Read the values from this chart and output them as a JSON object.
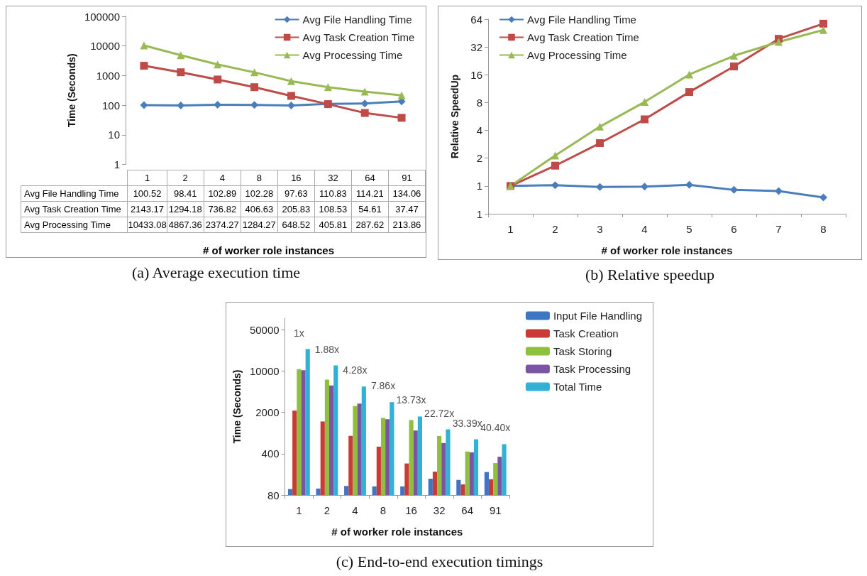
{
  "chart_data": [
    {
      "type": "line",
      "title": "(a) Average execution time",
      "xlabel": "# of worker role instances",
      "ylabel": "Time (Seconds)",
      "categories": [
        "1",
        "2",
        "4",
        "8",
        "16",
        "32",
        "64",
        "91"
      ],
      "series": [
        {
          "name": "Avg File Handling Time",
          "color": "#4a7ebb",
          "marker": "diamond",
          "values": [
            100.52,
            98.41,
            102.89,
            102.28,
            97.63,
            110.83,
            114.21,
            134.06
          ]
        },
        {
          "name": "Avg Task Creation Time",
          "color": "#be4b48",
          "marker": "square",
          "values": [
            2143.17,
            1294.18,
            736.82,
            406.63,
            205.83,
            108.53,
            54.61,
            37.47
          ]
        },
        {
          "name": "Avg Processing Time",
          "color": "#98b954",
          "marker": "triangle",
          "values": [
            10433.08,
            4867.36,
            2374.27,
            1284.27,
            648.52,
            405.81,
            287.62,
            213.86
          ]
        }
      ],
      "log": "y",
      "ylim": [
        1,
        100000
      ],
      "yticks": [
        1,
        10,
        100,
        1000,
        10000,
        100000
      ],
      "legend": "top right",
      "data_labels": true
    },
    {
      "type": "line",
      "title": "(b) Relative speedup",
      "xlabel": "# of worker role instances",
      "ylabel": "Relative SpeedUp",
      "categories": [
        "1",
        "2",
        "3",
        "4",
        "5",
        "6",
        "7",
        "8"
      ],
      "series": [
        {
          "name": "Avg File Handling Time",
          "color": "#4a7ebb",
          "marker": "diamond",
          "values": [
            1,
            1.02,
            0.977,
            0.983,
            1.03,
            0.907,
            0.88,
            0.75
          ]
        },
        {
          "name": "Avg Task Creation Time",
          "color": "#be4b48",
          "marker": "square",
          "values": [
            1,
            1.66,
            2.91,
            5.27,
            10.4,
            19.7,
            39.2,
            57.2
          ]
        },
        {
          "name": "Avg Processing Time",
          "color": "#98b954",
          "marker": "triangle",
          "values": [
            1,
            2.14,
            4.39,
            8.12,
            16.1,
            25.7,
            36.3,
            48.8
          ]
        }
      ],
      "log": "y",
      "ylim": [
        0.5,
        64
      ],
      "yticks": [
        {
          "value": 0.5,
          "label": "1"
        },
        1,
        2,
        4,
        8,
        16,
        32,
        64
      ],
      "legend": "top left"
    },
    {
      "type": "bar",
      "title": "(c) End-to-end execution timings",
      "xlabel": "# of worker role instances",
      "ylabel": "Time (Seconds)",
      "categories": [
        "1",
        "2",
        "4",
        "8",
        "16",
        "32",
        "64",
        "91"
      ],
      "series": [
        {
          "name": "Input File Handling",
          "color": "#3f76c4",
          "values": [
            101,
            103,
            114,
            112,
            112,
            151,
            144,
            196
          ]
        },
        {
          "name": "Task Creation",
          "color": "#cc3a35",
          "values": [
            2140,
            1400,
            800,
            526,
            273,
            199,
            121,
            148
          ]
        },
        {
          "name": "Task Storing",
          "color": "#8fbf3f",
          "values": [
            10700,
            7140,
            2550,
            1610,
            1480,
            797,
            435,
            277
          ]
        },
        {
          "name": "Task Processing",
          "color": "#7b55a3",
          "values": [
            10300,
            5700,
            2810,
            1530,
            985,
            605,
            421,
            355
          ]
        },
        {
          "name": "Total Time",
          "color": "#31b1d6",
          "values": [
            23400,
            12400,
            5460,
            2970,
            1700,
            1030,
            700,
            579
          ]
        }
      ],
      "log": "y",
      "ylim": [
        80,
        78000
      ],
      "yticks": [
        80,
        400,
        2000,
        10000,
        50000
      ],
      "legend": "top right",
      "annotations": [
        "1x",
        "1.88x",
        "4.28x",
        "7.86x",
        "13.73x",
        "22.72x",
        "33.39x",
        "40.40x"
      ]
    }
  ]
}
